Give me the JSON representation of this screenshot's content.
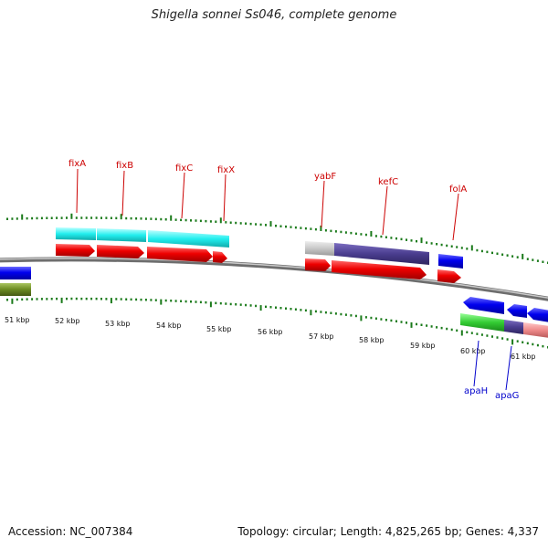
{
  "title": "Shigella sonnei Ss046, complete genome",
  "footer": {
    "accession": "Accession: NC_007384",
    "summary": "Topology: circular; Length: 4,825,265 bp; Genes: 4,337"
  },
  "scale_labels": [
    "51 kbp",
    "52 kbp",
    "53 kbp",
    "54 kbp",
    "55 kbp",
    "56 kbp",
    "57 kbp",
    "58 kbp",
    "59 kbp",
    "60 kbp",
    "61 kbp"
  ],
  "gene_labels": {
    "fixA": "fixA",
    "fixB": "fixB",
    "fixC": "fixC",
    "fixX": "fixX",
    "yabF": "yabF",
    "kefC": "kefC",
    "folA": "folA",
    "apaH": "apaH",
    "apaG": "apaG"
  },
  "colors": {
    "gene_label_forward": "#cc0000",
    "gene_label_reverse": "#0000cc",
    "backbone": "#888888",
    "tick": "#1a7a1a",
    "cds_forward": "#ee0000",
    "cds_reverse": "#0000ee",
    "cyan_feature": "#22eeee",
    "purple_feature": "#4a3d8f",
    "grey_feature": "#c8c8c8",
    "green_feature": "#33cc33",
    "olive_feature": "#6b8a22",
    "pink_feature": "#ee8a8a"
  }
}
